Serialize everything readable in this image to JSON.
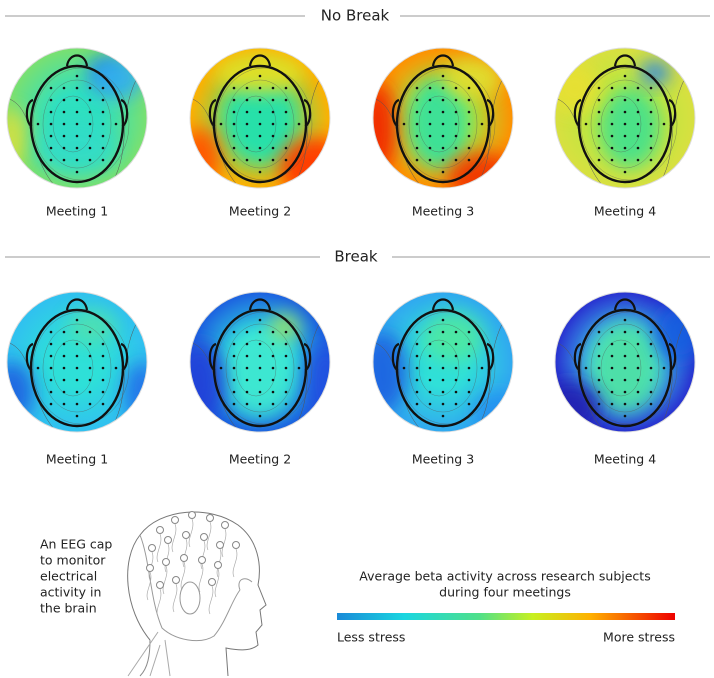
{
  "sections": [
    {
      "title": "No Break",
      "maps": [
        {
          "label": "Meeting 1"
        },
        {
          "label": "Meeting 2"
        },
        {
          "label": "Meeting 3"
        },
        {
          "label": "Meeting 4"
        }
      ]
    },
    {
      "title": "Break",
      "maps": [
        {
          "label": "Meeting 1"
        },
        {
          "label": "Meeting 2"
        },
        {
          "label": "Meeting 3"
        },
        {
          "label": "Meeting 4"
        }
      ]
    }
  ],
  "caption": [
    "An EEG cap",
    "to monitor",
    "electrical",
    "activity in",
    "the brain"
  ],
  "legend": {
    "title": [
      "Average beta activity across research subjects",
      "during four meetings"
    ],
    "low": "Less stress",
    "high": "More stress"
  }
}
